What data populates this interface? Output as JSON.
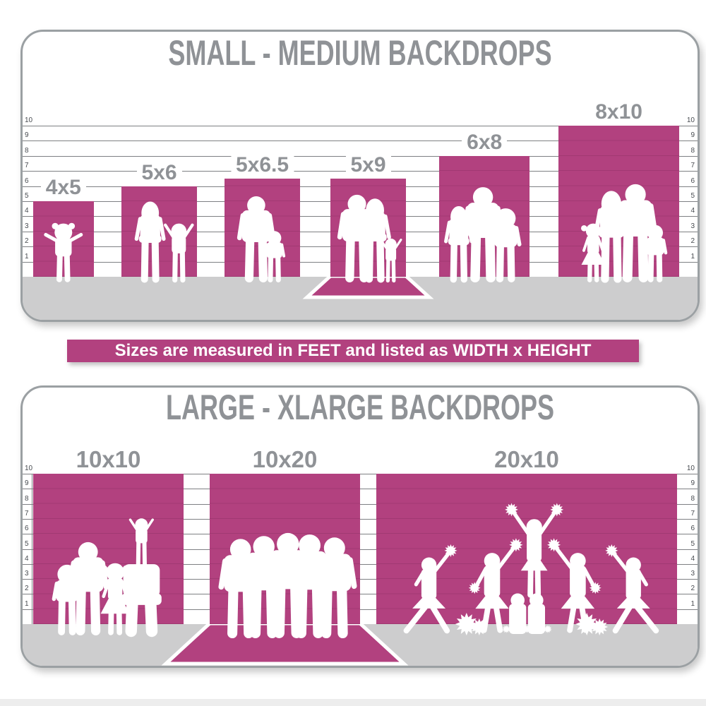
{
  "banner": {
    "text": "Sizes are measured in FEET and listed as WIDTH x HEIGHT"
  },
  "colors": {
    "backdrop_magenta": "#b2417f",
    "title_gray": "#8f9296",
    "floor_gray": "#cdcdce",
    "panel_border_gray": "#9ba0a3",
    "gridline_gray": "#7e8083",
    "tick_gray": "#474b50",
    "silhouette_white": "#ffffff"
  },
  "chart_data": [
    {
      "type": "bar",
      "title": "SMALL - MEDIUM BACKDROPS",
      "ylabel": "feet",
      "ylim": [
        0,
        10
      ],
      "yticks": [
        10,
        9,
        8,
        7,
        6,
        5,
        4,
        3,
        2,
        1
      ],
      "grid": true,
      "categories": [
        "4x5",
        "5x6",
        "5x6.5",
        "5x9",
        "6x8",
        "8x10"
      ],
      "values": [
        5,
        6,
        6.5,
        9,
        8,
        10
      ],
      "bars": [
        {
          "label": "4x5",
          "width_ft": 4,
          "height_ft": 5,
          "wall_height_ft": 5,
          "floor_sweep": false,
          "figures": [
            {
              "type": "toddler-girl",
              "height_ft": 3.9,
              "dx_ft": 0
            }
          ]
        },
        {
          "label": "5x6",
          "width_ft": 5,
          "height_ft": 6,
          "wall_height_ft": 6,
          "floor_sweep": false,
          "figures": [
            {
              "type": "woman",
              "height_ft": 5.3,
              "dx_ft": -0.6
            },
            {
              "type": "child-arms-up",
              "height_ft": 3.9,
              "dx_ft": 1.3
            }
          ]
        },
        {
          "label": "5x6.5",
          "width_ft": 5,
          "height_ft": 6.5,
          "wall_height_ft": 6.5,
          "floor_sweep": false,
          "figures": [
            {
              "type": "man",
              "height_ft": 5.7,
              "dx_ft": -0.4
            },
            {
              "type": "boy",
              "height_ft": 3.4,
              "dx_ft": 0.8
            }
          ]
        },
        {
          "label": "5x9",
          "width_ft": 5,
          "height_ft": 9,
          "wall_height_ft": 6.5,
          "floor_sweep": true,
          "figures": [
            {
              "type": "man",
              "height_ft": 5.8,
              "dx_ft": -0.75
            },
            {
              "type": "woman",
              "height_ft": 5.5,
              "dx_ft": 0.45
            },
            {
              "type": "child-arms-up",
              "height_ft": 2.9,
              "dx_ft": 1.5
            }
          ]
        },
        {
          "label": "6x8",
          "width_ft": 6,
          "height_ft": 8,
          "wall_height_ft": 8,
          "floor_sweep": false,
          "figures": [
            {
              "type": "woman",
              "height_ft": 5.0,
              "dx_ft": -1.7
            },
            {
              "type": "man",
              "height_ft": 6.3,
              "dx_ft": -0.1
            },
            {
              "type": "boy",
              "height_ft": 4.9,
              "dx_ft": 1.4
            }
          ]
        },
        {
          "label": "8x10",
          "width_ft": 8,
          "height_ft": 10,
          "wall_height_ft": 10,
          "floor_sweep": false,
          "figures": [
            {
              "type": "girl",
              "height_ft": 3.9,
              "dx_ft": -1.7
            },
            {
              "type": "woman",
              "height_ft": 6.0,
              "dx_ft": -0.5
            },
            {
              "type": "man",
              "height_ft": 6.5,
              "dx_ft": 1.1
            },
            {
              "type": "boy",
              "height_ft": 3.8,
              "dx_ft": 2.4
            }
          ]
        }
      ]
    },
    {
      "type": "bar",
      "title": "LARGE - XLARGE BACKDROPS",
      "ylabel": "feet",
      "ylim": [
        0,
        10
      ],
      "yticks": [
        10,
        9,
        8,
        7,
        6,
        5,
        4,
        3,
        2,
        1
      ],
      "grid": true,
      "categories": [
        "10x10",
        "10x20",
        "20x10"
      ],
      "values": [
        10,
        20,
        10
      ],
      "bars": [
        {
          "label": "10x10",
          "width_ft": 10,
          "height_ft": 10,
          "wall_height_ft": 10,
          "floor_sweep": false,
          "figures": [
            {
              "type": "boy",
              "height_ft": 4.7,
              "dx_ft": -2.75
            },
            {
              "type": "man",
              "height_ft": 6.2,
              "dx_ft": -1.35
            },
            {
              "type": "girl",
              "height_ft": 4.8,
              "dx_ft": 0.45
            },
            {
              "type": "adult-with-child-on-shoulders",
              "height_ft": 8.1,
              "dx_ft": 2.2
            }
          ]
        },
        {
          "label": "10x20",
          "width_ft": 10,
          "height_ft": 20,
          "wall_height_ft": 10,
          "floor_sweep": true,
          "figures": [
            {
              "type": "man",
              "height_ft": 6.6,
              "dx_ft": -2.95
            },
            {
              "type": "man",
              "height_ft": 6.8,
              "dx_ft": -1.4
            },
            {
              "type": "man",
              "height_ft": 7.0,
              "dx_ft": 0.2
            },
            {
              "type": "man",
              "height_ft": 6.9,
              "dx_ft": 1.65
            },
            {
              "type": "man",
              "height_ft": 6.7,
              "dx_ft": 3.3
            }
          ]
        },
        {
          "label": "20x10",
          "width_ft": 20,
          "height_ft": 10,
          "wall_height_ft": 10,
          "floor_sweep": false,
          "figures": [
            {
              "type": "cheerleader-lunge",
              "height_ft": 5.0,
              "dx_ft": -6.5,
              "flip": false
            },
            {
              "type": "cheerleader-arm-up",
              "height_ft": 5.3,
              "dx_ft": -2.3,
              "flip": false
            },
            {
              "type": "cheerleader-flyer",
              "height_ft": 5.2,
              "dx_ft": 0.5
            },
            {
              "type": "cheerleader-arm-up",
              "height_ft": 5.3,
              "dx_ft": 3.4,
              "flip": true
            },
            {
              "type": "cheerleader-lunge",
              "height_ft": 5.0,
              "dx_ft": 7.1,
              "flip": true
            },
            {
              "type": "cheerleader-kneeling",
              "height_ft": 2.7,
              "dx_ft": -0.6
            },
            {
              "type": "cheerleader-kneeling",
              "height_ft": 2.7,
              "dx_ft": 0.65
            },
            {
              "type": "pom-poms-ground",
              "height_ft": 1,
              "dx_ft": -4.0
            },
            {
              "type": "pom-poms-ground",
              "height_ft": 1,
              "dx_ft": 4.0
            }
          ]
        }
      ]
    }
  ]
}
